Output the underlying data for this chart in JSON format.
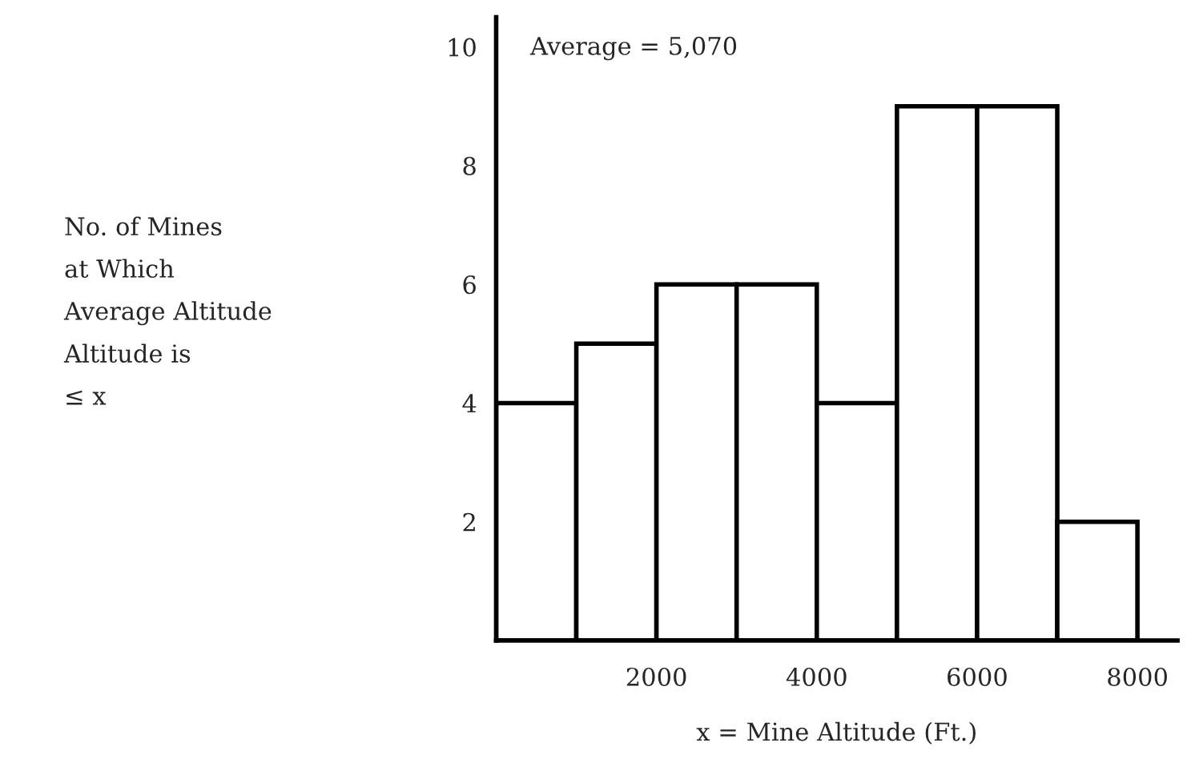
{
  "chart_data": {
    "type": "histogram",
    "xlabel": "x = Mine Altitude (Ft.)",
    "annotations": [
      "No. of Mines\nat Which\nAverage Altitude\nAltitude is\n≤ x",
      "Average = 5,070"
    ],
    "bins": [
      0,
      1000,
      2000,
      3000,
      4000,
      5000,
      6000,
      7000,
      8000
    ],
    "values": [
      4,
      5,
      6,
      6,
      4,
      9,
      9,
      2
    ],
    "color": "#ffffff",
    "xlim": [
      0,
      8500
    ],
    "xticks": [
      2000,
      4000,
      6000,
      8000
    ],
    "ylim": [
      0,
      10.5
    ],
    "yticks": [
      2,
      4,
      6,
      8,
      10
    ],
    "grid": false,
    "legend": false
  }
}
